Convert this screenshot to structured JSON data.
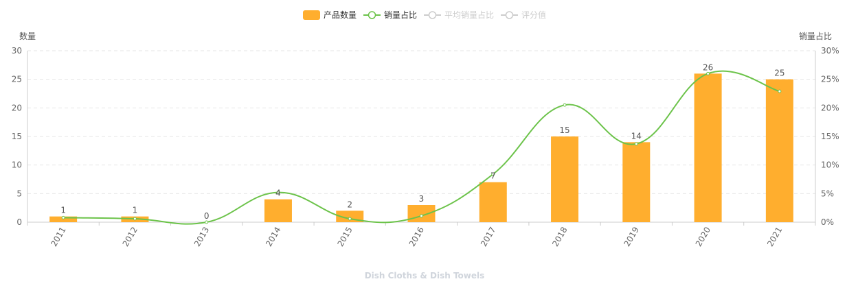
{
  "chart_data": {
    "type": "bar",
    "categories": [
      "2011",
      "2012",
      "2013",
      "2014",
      "2015",
      "2016",
      "2017",
      "2018",
      "2019",
      "2020",
      "2021"
    ],
    "series": [
      {
        "name": "产品数量",
        "type": "bar",
        "axis": "left",
        "values": [
          1,
          1,
          0,
          4,
          2,
          3,
          7,
          15,
          14,
          26,
          25
        ]
      },
      {
        "name": "销量占比",
        "type": "line",
        "axis": "right",
        "values": [
          0.8,
          0.6,
          0.0,
          5.2,
          0.6,
          1.1,
          8.4,
          20.5,
          13.7,
          26.0,
          22.9
        ]
      }
    ],
    "legend": [
      {
        "name": "产品数量",
        "kind": "bar",
        "active": true
      },
      {
        "name": "销量占比",
        "kind": "line",
        "active": true
      },
      {
        "name": "平均销量占比",
        "kind": "line",
        "active": false
      },
      {
        "name": "评分值",
        "kind": "line",
        "active": false
      }
    ],
    "left_axis": {
      "label": "数量",
      "ylim": [
        0,
        30
      ],
      "ticks": [
        0,
        5,
        10,
        15,
        20,
        25,
        30
      ]
    },
    "right_axis": {
      "label": "销量占比",
      "ylim": [
        0,
        30
      ],
      "ticks": [
        "0%",
        "5%",
        "10%",
        "15%",
        "20%",
        "25%",
        "30%"
      ]
    },
    "xlabel": "Dish Cloths & Dish Towels",
    "grid": true,
    "legend_position": "top-center",
    "colors": {
      "bar": "#ffae2e",
      "line": "#6cc34a",
      "inactive": "#cccccc",
      "axis_text": "#666666",
      "grid": "#e6e6e6",
      "xlabel": "#d0d5dc"
    }
  }
}
